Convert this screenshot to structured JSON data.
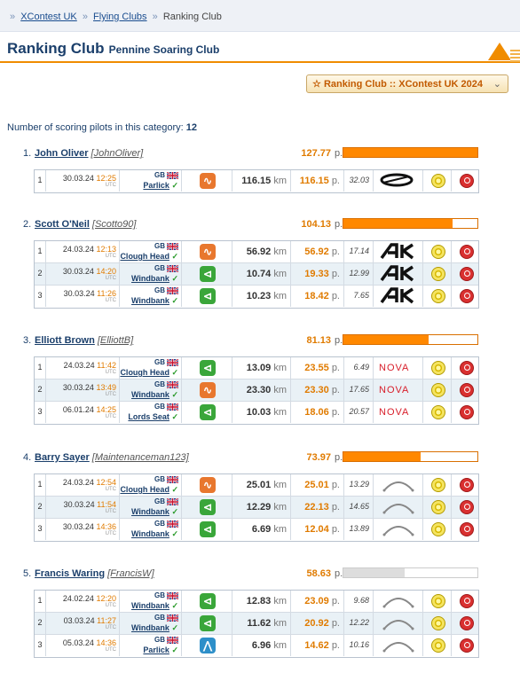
{
  "breadcrumb": {
    "prefix": "»",
    "items": [
      "XContest UK",
      "Flying Clubs",
      "Ranking Club"
    ],
    "separator": "»"
  },
  "title": {
    "main": "Ranking Club",
    "sub": "Pennine Soaring Club"
  },
  "ranking_select": {
    "star": "☆",
    "value": "Ranking Club :: XContest UK 2024",
    "chevron": "⌄"
  },
  "count": {
    "label": "Number of scoring pilots in this category:",
    "value": "12"
  },
  "accent": "#ff8800",
  "points_unit": "p.",
  "km_unit": "km",
  "utc_label": "UTC",
  "pilots": [
    {
      "rank": "1.",
      "name": "John Oliver",
      "username": "[JohnOliver]",
      "points": "127.77",
      "bar": 1.0,
      "bar_grey": false,
      "flights": [
        {
          "n": "1",
          "date": "30.03.24",
          "time": "12:25",
          "country": "GB",
          "site": "Parlick",
          "type": "olc",
          "type_icon": "wave-icon",
          "km": "116.15",
          "pts": "116.15",
          "speed": "32.03",
          "glider": "ozone-logo"
        }
      ]
    },
    {
      "rank": "2.",
      "name": "Scott O'Neil",
      "username": "[Scotto90]",
      "points": "104.13",
      "bar": 0.815,
      "bar_grey": false,
      "flights": [
        {
          "n": "1",
          "date": "24.03.24",
          "time": "12:13",
          "country": "GB",
          "site": "Clough Head",
          "type": "olc",
          "type_icon": "wave-icon",
          "km": "56.92",
          "pts": "56.92",
          "speed": "17.14",
          "glider": "ak-logo"
        },
        {
          "n": "2",
          "date": "30.03.24",
          "time": "14:20",
          "country": "GB",
          "site": "Windbank",
          "type": "tri",
          "type_icon": "triangle-icon",
          "km": "10.74",
          "pts": "19.33",
          "speed": "12.99",
          "glider": "ak-logo"
        },
        {
          "n": "3",
          "date": "30.03.24",
          "time": "11:26",
          "country": "GB",
          "site": "Windbank",
          "type": "tri",
          "type_icon": "triangle-icon",
          "km": "10.23",
          "pts": "18.42",
          "speed": "7.65",
          "glider": "ak-logo"
        }
      ]
    },
    {
      "rank": "3.",
      "name": "Elliott Brown",
      "username": "[ElliottB]",
      "points": "81.13",
      "bar": 0.635,
      "bar_grey": false,
      "flights": [
        {
          "n": "1",
          "date": "24.03.24",
          "time": "11:42",
          "country": "GB",
          "site": "Clough Head",
          "type": "tri",
          "type_icon": "triangle-icon",
          "km": "13.09",
          "pts": "23.55",
          "speed": "6.49",
          "glider": "nova-logo"
        },
        {
          "n": "2",
          "date": "30.03.24",
          "time": "13:49",
          "country": "GB",
          "site": "Windbank",
          "type": "olc",
          "type_icon": "wave-icon",
          "km": "23.30",
          "pts": "23.30",
          "speed": "17.65",
          "glider": "nova-logo"
        },
        {
          "n": "3",
          "date": "06.01.24",
          "time": "14:25",
          "country": "GB",
          "site": "Lords Seat",
          "type": "tri",
          "type_icon": "triangle-icon",
          "km": "10.03",
          "pts": "18.06",
          "speed": "20.57",
          "glider": "nova-logo"
        }
      ]
    },
    {
      "rank": "4.",
      "name": "Barry Sayer",
      "username": "[Maintenanceman123]",
      "points": "73.97",
      "bar": 0.579,
      "bar_grey": false,
      "flights": [
        {
          "n": "1",
          "date": "24.03.24",
          "time": "12:54",
          "country": "GB",
          "site": "Clough Head",
          "type": "olc",
          "type_icon": "wave-icon",
          "km": "25.01",
          "pts": "25.01",
          "speed": "13.29",
          "glider": "wing-logo"
        },
        {
          "n": "2",
          "date": "30.03.24",
          "time": "11:54",
          "country": "GB",
          "site": "Windbank",
          "type": "tri",
          "type_icon": "triangle-icon",
          "km": "12.29",
          "pts": "22.13",
          "speed": "14.65",
          "glider": "wing-logo"
        },
        {
          "n": "3",
          "date": "30.03.24",
          "time": "14:36",
          "country": "GB",
          "site": "Windbank",
          "type": "tri",
          "type_icon": "triangle-icon",
          "km": "6.69",
          "pts": "12.04",
          "speed": "13.89",
          "glider": "wing-logo"
        }
      ]
    },
    {
      "rank": "5.",
      "name": "Francis Waring",
      "username": "[FrancisW]",
      "points": "58.63",
      "bar": 0.459,
      "bar_grey": true,
      "flights": [
        {
          "n": "1",
          "date": "24.02.24",
          "time": "12:20",
          "country": "GB",
          "site": "Windbank",
          "type": "tri",
          "type_icon": "triangle-icon",
          "km": "12.83",
          "pts": "23.09",
          "speed": "9.68",
          "glider": "wing-logo"
        },
        {
          "n": "2",
          "date": "03.03.24",
          "time": "11:27",
          "country": "GB",
          "site": "Windbank",
          "type": "tri",
          "type_icon": "triangle-icon",
          "km": "11.62",
          "pts": "20.92",
          "speed": "12.22",
          "glider": "wing-logo"
        },
        {
          "n": "3",
          "date": "05.03.24",
          "time": "14:36",
          "country": "GB",
          "site": "Parlick",
          "type": "ft",
          "type_icon": "free-flight-icon",
          "km": "6.96",
          "pts": "14.62",
          "speed": "10.16",
          "glider": "wing-logo"
        }
      ]
    }
  ]
}
